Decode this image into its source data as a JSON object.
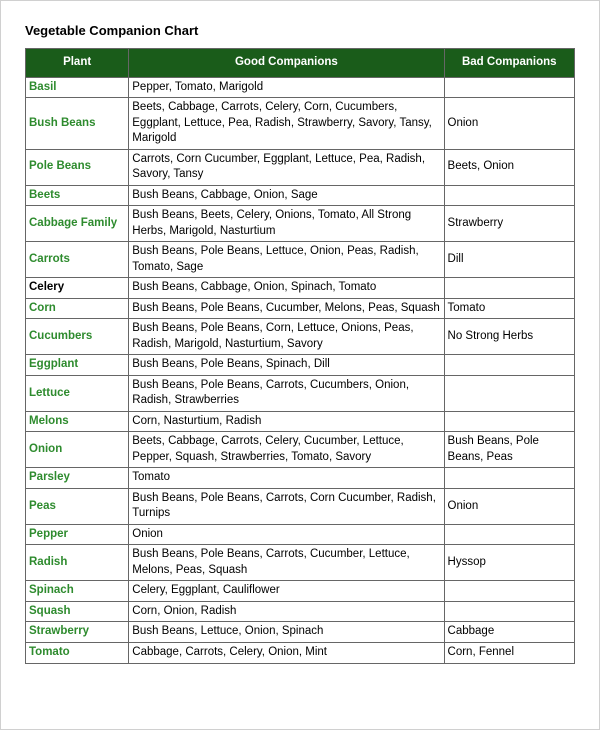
{
  "title": "Vegetable Companion Chart",
  "header_bg": "#1a5c1a",
  "header_text_color": "#ffffff",
  "plant_name_color": "#2e8b2e",
  "border_color": "#666666",
  "columns": [
    "Plant",
    "Good Companions",
    "Bad Companions"
  ],
  "rows": [
    {
      "plant": "Basil",
      "good": "Pepper, Tomato, Marigold",
      "bad": ""
    },
    {
      "plant": "Bush Beans",
      "good": "Beets, Cabbage, Carrots, Celery, Corn, Cucumbers, Eggplant, Lettuce, Pea, Radish, Strawberry, Savory, Tansy, Marigold",
      "bad": "Onion"
    },
    {
      "plant": "Pole Beans",
      "good": "Carrots, Corn Cucumber, Eggplant, Lettuce, Pea, Radish, Savory, Tansy",
      "bad": "Beets, Onion"
    },
    {
      "plant": "Beets",
      "good": "Bush Beans, Cabbage, Onion, Sage",
      "bad": ""
    },
    {
      "plant": "Cabbage Family",
      "good": "Bush Beans, Beets, Celery, Onions, Tomato, All Strong Herbs, Marigold, Nasturtium",
      "bad": "Strawberry"
    },
    {
      "plant": "Carrots",
      "good": "Bush Beans, Pole Beans, Lettuce, Onion, Peas, Radish, Tomato, Sage",
      "bad": "Dill"
    },
    {
      "plant": "Celery",
      "dark": true,
      "good": "Bush Beans, Cabbage, Onion, Spinach, Tomato",
      "bad": ""
    },
    {
      "plant": "Corn",
      "good": "Bush Beans, Pole Beans, Cucumber, Melons, Peas, Squash",
      "bad": "Tomato"
    },
    {
      "plant": "Cucumbers",
      "good": "Bush Beans, Pole Beans, Corn, Lettuce, Onions, Peas, Radish, Marigold, Nasturtium, Savory",
      "bad": "No Strong Herbs"
    },
    {
      "plant": "Eggplant",
      "good": "Bush Beans, Pole Beans, Spinach, Dill",
      "bad": ""
    },
    {
      "plant": "Lettuce",
      "good": "Bush Beans, Pole Beans, Carrots, Cucumbers, Onion, Radish, Strawberries",
      "bad": ""
    },
    {
      "plant": "Melons",
      "good": "Corn, Nasturtium, Radish",
      "bad": ""
    },
    {
      "plant": "Onion",
      "good": "Beets, Cabbage, Carrots, Celery, Cucumber, Lettuce, Pepper, Squash, Strawberries, Tomato, Savory",
      "bad": "Bush Beans, Pole Beans, Peas"
    },
    {
      "plant": "Parsley",
      "good": "Tomato",
      "bad": ""
    },
    {
      "plant": "Peas",
      "good": "Bush Beans, Pole Beans, Carrots, Corn Cucumber, Radish, Turnips",
      "bad": "Onion"
    },
    {
      "plant": "Pepper",
      "good": "Onion",
      "bad": ""
    },
    {
      "plant": "Radish",
      "good": "Bush Beans, Pole Beans, Carrots, Cucumber, Lettuce, Melons, Peas, Squash",
      "bad": "Hyssop"
    },
    {
      "plant": "Spinach",
      "good": "Celery, Eggplant, Cauliflower",
      "bad": ""
    },
    {
      "plant": "Squash",
      "good": "Corn, Onion, Radish",
      "bad": ""
    },
    {
      "plant": "Strawberry",
      "good": "Bush Beans, Lettuce, Onion, Spinach",
      "bad": "Cabbage"
    },
    {
      "plant": "Tomato",
      "good": "Cabbage, Carrots, Celery, Onion, Mint",
      "bad": "Corn, Fennel"
    }
  ]
}
